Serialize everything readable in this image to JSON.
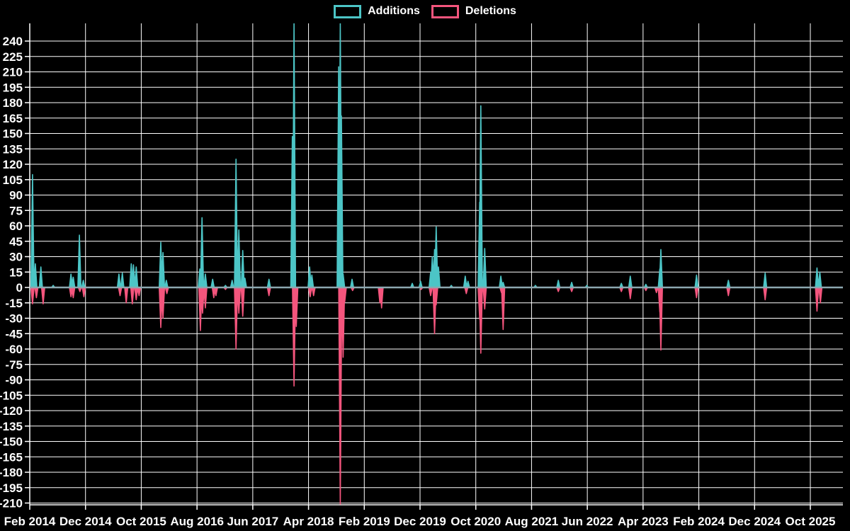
{
  "legend": {
    "additions_label": "Additions",
    "deletions_label": "Deletions"
  },
  "colors": {
    "additions": "#4CC5C6",
    "deletions": "#F4557D",
    "zero_line": "#8CA8B0",
    "grid": "#FFFFFF",
    "axis": "#FFFFFF",
    "text": "#FFFFFF",
    "background": "#000000"
  },
  "chart_data": {
    "type": "line",
    "title": "",
    "xlabel": "",
    "ylabel": "",
    "legend_position": "top-center",
    "grid": true,
    "y_tick_step": 15,
    "ylim": [
      -212,
      257
    ],
    "y_ticks": [
      240,
      225,
      210,
      195,
      180,
      165,
      150,
      135,
      120,
      105,
      90,
      75,
      60,
      45,
      30,
      15,
      0,
      -15,
      -30,
      -45,
      -60,
      -75,
      -90,
      -105,
      -120,
      -135,
      -150,
      -165,
      -180,
      -195,
      -210
    ],
    "x_tick_labels": [
      "Feb 2014",
      "Dec 2014",
      "Oct 2015",
      "Aug 2016",
      "Jun 2017",
      "Apr 2018",
      "Feb 2019",
      "Dec 2019",
      "Oct 2020",
      "Aug 2021",
      "Jun 2022",
      "Apr 2023",
      "Feb 2024",
      "Dec 2024",
      "Oct 2025"
    ],
    "x_months_between_labels": 10,
    "x_unit_note": "series x values are months after Feb 2014",
    "series": [
      {
        "name": "Additions",
        "spikes": [
          [
            0.5,
            110
          ],
          [
            1.0,
            23
          ],
          [
            2.0,
            20
          ],
          [
            4.2,
            2
          ],
          [
            7.4,
            13
          ],
          [
            7.8,
            10
          ],
          [
            8.9,
            51
          ],
          [
            9.6,
            7
          ],
          [
            16.0,
            13
          ],
          [
            16.6,
            14
          ],
          [
            18.2,
            23
          ],
          [
            18.6,
            22
          ],
          [
            19.1,
            20
          ],
          [
            23.5,
            44
          ],
          [
            23.9,
            34
          ],
          [
            24.5,
            7
          ],
          [
            30.5,
            18
          ],
          [
            30.9,
            68
          ],
          [
            31.5,
            13
          ],
          [
            32.8,
            8
          ],
          [
            35.1,
            2
          ],
          [
            36.3,
            7
          ],
          [
            37.0,
            125
          ],
          [
            37.5,
            56
          ],
          [
            38.2,
            36
          ],
          [
            38.6,
            9
          ],
          [
            42.9,
            8
          ],
          [
            47.1,
            147
          ],
          [
            47.4,
            258
          ],
          [
            50.2,
            20
          ],
          [
            50.6,
            12
          ],
          [
            55.4,
            215
          ],
          [
            55.7,
            258
          ],
          [
            55.9,
            167
          ],
          [
            56.2,
            13
          ],
          [
            57.8,
            8
          ],
          [
            68.6,
            4
          ],
          [
            70.1,
            6
          ],
          [
            71.9,
            15
          ],
          [
            72.2,
            30
          ],
          [
            72.6,
            37
          ],
          [
            72.9,
            59
          ],
          [
            73.3,
            20
          ],
          [
            75.6,
            2
          ],
          [
            78.1,
            11
          ],
          [
            78.6,
            6
          ],
          [
            80.7,
            83
          ],
          [
            80.9,
            177
          ],
          [
            81.6,
            38
          ],
          [
            84.5,
            11
          ],
          [
            84.9,
            5
          ],
          [
            90.7,
            2
          ],
          [
            94.8,
            7
          ],
          [
            97.2,
            5
          ],
          [
            99.9,
            2
          ],
          [
            106.1,
            4
          ],
          [
            107.7,
            11
          ],
          [
            110.5,
            3
          ],
          [
            113.0,
            18
          ],
          [
            113.2,
            37
          ],
          [
            119.6,
            12
          ],
          [
            125.3,
            7
          ],
          [
            131.9,
            14
          ],
          [
            141.2,
            19
          ],
          [
            141.7,
            15
          ]
        ]
      },
      {
        "name": "Deletions",
        "spikes": [
          [
            0.5,
            -16
          ],
          [
            1.2,
            -10
          ],
          [
            2.4,
            -16
          ],
          [
            7.4,
            -9
          ],
          [
            7.8,
            -10
          ],
          [
            9.0,
            -4
          ],
          [
            9.7,
            -9
          ],
          [
            16.2,
            -8
          ],
          [
            17.3,
            -15
          ],
          [
            18.4,
            -16
          ],
          [
            19.1,
            -12
          ],
          [
            19.6,
            -8
          ],
          [
            23.5,
            -39
          ],
          [
            23.9,
            -30
          ],
          [
            24.6,
            -6
          ],
          [
            30.6,
            -42
          ],
          [
            31.0,
            -25
          ],
          [
            31.5,
            -20
          ],
          [
            33.0,
            -10
          ],
          [
            33.4,
            -8
          ],
          [
            35.1,
            -2
          ],
          [
            37.0,
            -60
          ],
          [
            37.5,
            -25
          ],
          [
            38.2,
            -28
          ],
          [
            42.9,
            -8
          ],
          [
            47.4,
            -96
          ],
          [
            47.8,
            -38
          ],
          [
            50.3,
            -9
          ],
          [
            50.9,
            -8
          ],
          [
            55.7,
            -211
          ],
          [
            56.2,
            -68
          ],
          [
            56.5,
            -14
          ],
          [
            57.9,
            -3
          ],
          [
            62.8,
            -15
          ],
          [
            63.1,
            -20
          ],
          [
            70.2,
            -2
          ],
          [
            71.9,
            -8
          ],
          [
            72.6,
            -45
          ],
          [
            72.9,
            -17
          ],
          [
            78.3,
            -6
          ],
          [
            80.7,
            -31
          ],
          [
            80.9,
            -64
          ],
          [
            81.6,
            -21
          ],
          [
            84.6,
            -5
          ],
          [
            84.9,
            -41
          ],
          [
            94.8,
            -4
          ],
          [
            97.2,
            -4
          ],
          [
            106.1,
            -4
          ],
          [
            107.7,
            -11
          ],
          [
            110.5,
            -3
          ],
          [
            112.4,
            -5
          ],
          [
            113.0,
            -24
          ],
          [
            113.2,
            -61
          ],
          [
            119.6,
            -10
          ],
          [
            125.3,
            -8
          ],
          [
            131.9,
            -12
          ],
          [
            141.2,
            -23
          ],
          [
            141.8,
            -15
          ]
        ]
      }
    ]
  }
}
